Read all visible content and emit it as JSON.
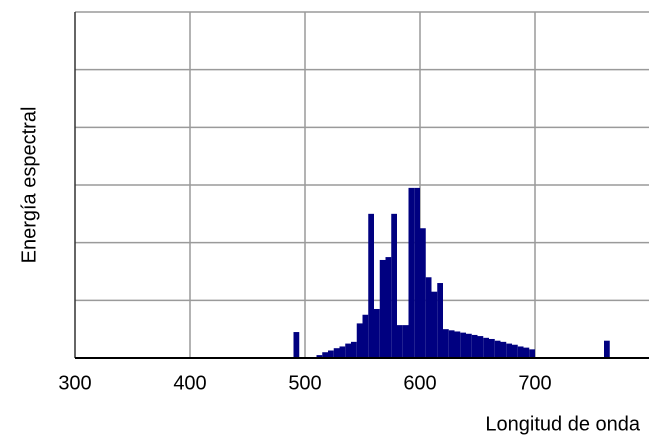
{
  "chart_data": {
    "type": "histogram",
    "x_label": "Longitud de onda",
    "y_label": "Energía espectral",
    "color": "#000080",
    "grid": true,
    "xlim": [
      300,
      800
    ],
    "xticks": [
      300,
      400,
      500,
      600,
      700
    ],
    "ylim": [
      0,
      6
    ],
    "yticks": [
      0,
      1,
      2,
      3,
      4,
      5,
      6
    ],
    "bins": [
      490,
      495,
      500,
      505,
      510,
      515,
      520,
      525,
      530,
      535,
      540,
      545,
      550,
      555,
      560,
      565,
      570,
      575,
      580,
      585,
      590,
      595,
      600,
      605,
      610,
      615,
      620,
      625,
      630,
      635,
      640,
      645,
      650,
      655,
      660,
      665,
      670,
      675,
      680,
      685,
      690,
      695,
      700,
      705,
      710,
      715,
      720,
      725,
      730,
      735,
      740,
      745,
      750,
      755,
      760,
      765
    ],
    "values": [
      0.45,
      0,
      0,
      0,
      0.05,
      0.1,
      0.13,
      0.17,
      0.2,
      0.25,
      0.28,
      0.6,
      0.75,
      2.5,
      0.85,
      1.7,
      1.75,
      2.5,
      0.57,
      0.57,
      2.95,
      2.95,
      2.25,
      1.4,
      1.15,
      1.3,
      0.5,
      0.48,
      0.46,
      0.44,
      0.42,
      0.4,
      0.38,
      0.35,
      0.33,
      0.3,
      0.28,
      0.25,
      0.23,
      0.2,
      0.18,
      0.15,
      0,
      0,
      0,
      0,
      0,
      0,
      0,
      0,
      0,
      0,
      0,
      0,
      0.3
    ]
  }
}
